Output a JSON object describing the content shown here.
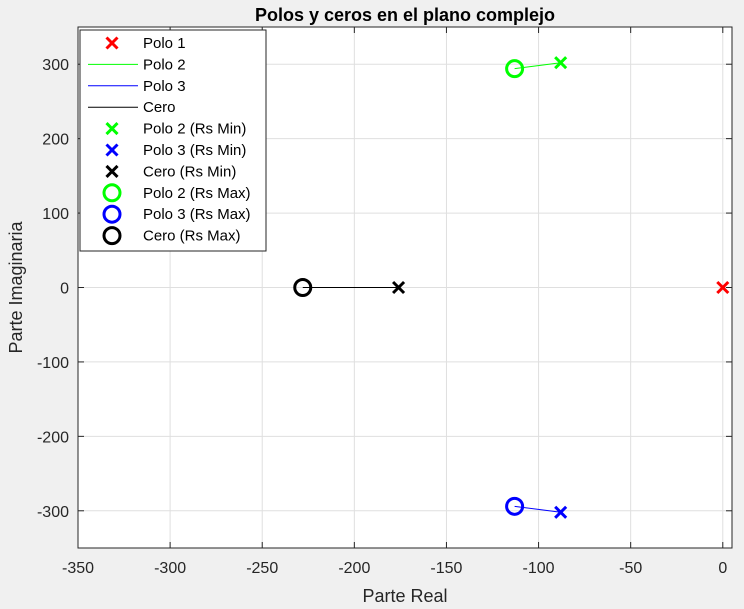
{
  "chart_data": {
    "type": "scatter",
    "title": "Polos y ceros en el plano complejo",
    "xlabel": "Parte Real",
    "ylabel": "Parte Imaginaria",
    "xlim": [
      -350,
      5
    ],
    "ylim": [
      -350,
      350
    ],
    "xticks": [
      -350,
      -300,
      -250,
      -200,
      -150,
      -100,
      -50,
      0
    ],
    "yticks": [
      -300,
      -200,
      -100,
      0,
      100,
      200,
      300
    ],
    "grid": true,
    "legend_position": "top-left",
    "series": [
      {
        "name": "Polo 1",
        "kind": "marker",
        "marker": "x",
        "color": "#ff0000",
        "points": [
          [
            0,
            0
          ]
        ]
      },
      {
        "name": "Polo 2",
        "kind": "line",
        "color": "#00ff00",
        "points": [
          [
            -113,
            294
          ],
          [
            -88,
            302
          ]
        ]
      },
      {
        "name": "Polo 3",
        "kind": "line",
        "color": "#0000ff",
        "points": [
          [
            -113,
            -294
          ],
          [
            -88,
            -302
          ]
        ]
      },
      {
        "name": "Cero",
        "kind": "line",
        "color": "#000000",
        "points": [
          [
            -228,
            0
          ],
          [
            -176,
            0
          ]
        ]
      },
      {
        "name": "Polo 2 (Rs Min)",
        "kind": "marker",
        "marker": "x",
        "color": "#00ff00",
        "points": [
          [
            -88,
            302
          ]
        ]
      },
      {
        "name": "Polo 3 (Rs Min)",
        "kind": "marker",
        "marker": "x",
        "color": "#0000ff",
        "points": [
          [
            -88,
            -302
          ]
        ]
      },
      {
        "name": "Cero (Rs Min)",
        "kind": "marker",
        "marker": "x",
        "color": "#000000",
        "points": [
          [
            -176,
            0
          ]
        ]
      },
      {
        "name": "Polo 2 (Rs Max)",
        "kind": "marker",
        "marker": "o",
        "color": "#00ff00",
        "points": [
          [
            -113,
            294
          ]
        ]
      },
      {
        "name": "Polo 3 (Rs Max)",
        "kind": "marker",
        "marker": "o",
        "color": "#0000ff",
        "points": [
          [
            -113,
            -294
          ]
        ]
      },
      {
        "name": "Cero (Rs Max)",
        "kind": "marker",
        "marker": "o",
        "color": "#000000",
        "points": [
          [
            -228,
            0
          ]
        ]
      }
    ]
  }
}
